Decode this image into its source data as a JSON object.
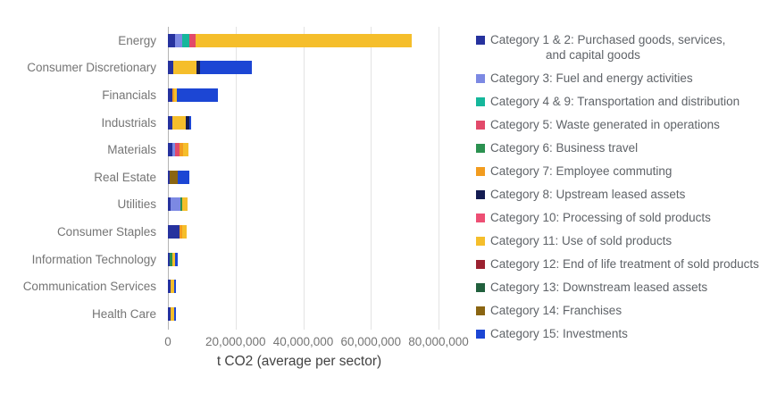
{
  "chart_data": {
    "type": "bar",
    "orientation": "horizontal",
    "stacked": true,
    "title": "",
    "xlabel": "t CO2 (average per sector)",
    "ylabel": "",
    "xlim": [
      0,
      80000000
    ],
    "grid": true,
    "legend_position": "right",
    "x_ticks": [
      {
        "value": 0,
        "label": "0"
      },
      {
        "value": 20000000,
        "label": "20,000,000"
      },
      {
        "value": 40000000,
        "label": "40,000,000"
      },
      {
        "value": 60000000,
        "label": "60,000,000"
      },
      {
        "value": 80000000,
        "label": "80,000,000"
      }
    ],
    "legend": [
      {
        "id": "cat1_2",
        "label_lines": [
          "Category 1 & 2: Purchased goods, services,",
          "and capital goods"
        ],
        "color": "#26329E"
      },
      {
        "id": "cat3",
        "label_lines": [
          "Category 3: Fuel and energy activities"
        ],
        "color": "#7C89E3"
      },
      {
        "id": "cat4_9",
        "label_lines": [
          "Category 4 & 9: Transportation and distribution"
        ],
        "color": "#15B79B"
      },
      {
        "id": "cat5",
        "label_lines": [
          "Category 5: Waste generated in operations"
        ],
        "color": "#E24A6A"
      },
      {
        "id": "cat6",
        "label_lines": [
          "Category 6: Business travel"
        ],
        "color": "#2B9150"
      },
      {
        "id": "cat7",
        "label_lines": [
          "Category 7: Employee commuting"
        ],
        "color": "#F29C1F"
      },
      {
        "id": "cat8",
        "label_lines": [
          "Category 8: Upstream leased assets"
        ],
        "color": "#141C52"
      },
      {
        "id": "cat10",
        "label_lines": [
          "Category 10: Processing of sold products"
        ],
        "color": "#ED4F74"
      },
      {
        "id": "cat11",
        "label_lines": [
          "Category 11: Use of sold products"
        ],
        "color": "#F5BE2B"
      },
      {
        "id": "cat12",
        "label_lines": [
          "Category 12: End of life treatment of sold products"
        ],
        "color": "#9B2130"
      },
      {
        "id": "cat13",
        "label_lines": [
          "Category 13: Downstream leased assets"
        ],
        "color": "#21603D"
      },
      {
        "id": "cat14",
        "label_lines": [
          "Category 14: Franchises"
        ],
        "color": "#8A6512"
      },
      {
        "id": "cat15",
        "label_lines": [
          "Category 15: Investments"
        ],
        "color": "#1C46D4"
      }
    ],
    "categories": [
      "Energy",
      "Consumer Discretionary",
      "Financials",
      "Industrials",
      "Materials",
      "Real Estate",
      "Utilities",
      "Consumer Staples",
      "Information Technology",
      "Communication Services",
      "Health Care"
    ],
    "rows": [
      {
        "sector": "Energy",
        "segments": [
          {
            "category": "cat1_2",
            "value": 2000000
          },
          {
            "category": "cat3",
            "value": 2200000
          },
          {
            "category": "cat4_9",
            "value": 2100000
          },
          {
            "category": "cat5",
            "value": 2000000
          },
          {
            "category": "cat11",
            "value": 63700000
          }
        ]
      },
      {
        "sector": "Consumer Discretionary",
        "segments": [
          {
            "category": "cat1_2",
            "value": 1700000
          },
          {
            "category": "cat11",
            "value": 6700000
          },
          {
            "category": "cat8",
            "value": 1200000
          },
          {
            "category": "cat15",
            "value": 15300000
          }
        ]
      },
      {
        "sector": "Financials",
        "segments": [
          {
            "category": "cat1_2",
            "value": 1300000
          },
          {
            "category": "cat7",
            "value": 600000
          },
          {
            "category": "cat11",
            "value": 800000
          },
          {
            "category": "cat15",
            "value": 12200000
          }
        ]
      },
      {
        "sector": "Industrials",
        "segments": [
          {
            "category": "cat1_2",
            "value": 1200000
          },
          {
            "category": "cat11",
            "value": 4000000
          },
          {
            "category": "cat8",
            "value": 1100000
          },
          {
            "category": "cat15",
            "value": 500000
          }
        ]
      },
      {
        "sector": "Materials",
        "segments": [
          {
            "category": "cat1_2",
            "value": 1300000
          },
          {
            "category": "cat3",
            "value": 700000
          },
          {
            "category": "cat5",
            "value": 1500000
          },
          {
            "category": "cat7",
            "value": 1100000
          },
          {
            "category": "cat11",
            "value": 1400000
          }
        ]
      },
      {
        "sector": "Real Estate",
        "segments": [
          {
            "category": "cat1_2",
            "value": 500000
          },
          {
            "category": "cat14",
            "value": 2500000
          },
          {
            "category": "cat15",
            "value": 3400000
          }
        ]
      },
      {
        "sector": "Utilities",
        "segments": [
          {
            "category": "cat1_2",
            "value": 700000
          },
          {
            "category": "cat3",
            "value": 2900000
          },
          {
            "category": "cat6",
            "value": 600000
          },
          {
            "category": "cat11",
            "value": 1500000
          }
        ]
      },
      {
        "sector": "Consumer Staples",
        "segments": [
          {
            "category": "cat1_2",
            "value": 3500000
          },
          {
            "category": "cat7",
            "value": 800000
          },
          {
            "category": "cat11",
            "value": 1200000
          }
        ]
      },
      {
        "sector": "Information Technology",
        "segments": [
          {
            "category": "cat1_2",
            "value": 600000
          },
          {
            "category": "cat6",
            "value": 800000
          },
          {
            "category": "cat11",
            "value": 600000
          },
          {
            "category": "cat15",
            "value": 800000
          }
        ]
      },
      {
        "sector": "Communication Services",
        "segments": [
          {
            "category": "cat1_2",
            "value": 800000
          },
          {
            "category": "cat11",
            "value": 1100000
          },
          {
            "category": "cat15",
            "value": 400000
          }
        ]
      },
      {
        "sector": "Health Care",
        "segments": [
          {
            "category": "cat1_2",
            "value": 800000
          },
          {
            "category": "cat11",
            "value": 1100000
          },
          {
            "category": "cat15",
            "value": 500000
          }
        ]
      }
    ]
  }
}
